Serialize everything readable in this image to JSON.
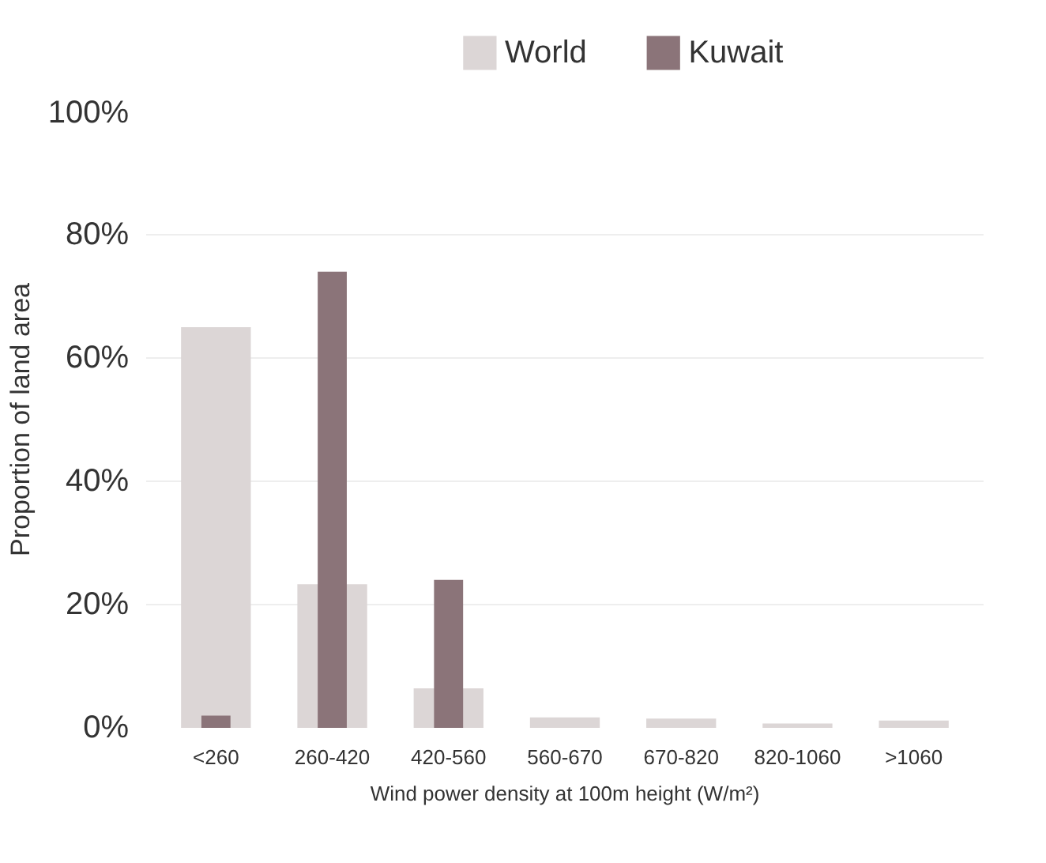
{
  "chart_data": {
    "type": "bar",
    "xlabel": "Wind power density at 100m height (W/m²)",
    "ylabel": "Proportion of land area",
    "categories": [
      "<260",
      "260-420",
      "420-560",
      "560-670",
      "670-820",
      "820-1060",
      ">1060"
    ],
    "series": [
      {
        "name": "World",
        "color": "#dcd6d6",
        "values": [
          65,
          23.3,
          6.4,
          1.7,
          1.5,
          0.7,
          1.2
        ]
      },
      {
        "name": "Kuwait",
        "color": "#8b7479",
        "values": [
          2,
          74,
          24,
          0,
          0,
          0,
          0
        ]
      }
    ],
    "ylim": [
      0,
      100
    ],
    "yticks": [
      {
        "value": 0,
        "label": "0%"
      },
      {
        "value": 20,
        "label": "20%"
      },
      {
        "value": 40,
        "label": "40%"
      },
      {
        "value": 60,
        "label": "60%"
      },
      {
        "value": 80,
        "label": "80%"
      },
      {
        "value": 100,
        "label": "100%"
      }
    ],
    "grid": "y",
    "legend": "top"
  }
}
